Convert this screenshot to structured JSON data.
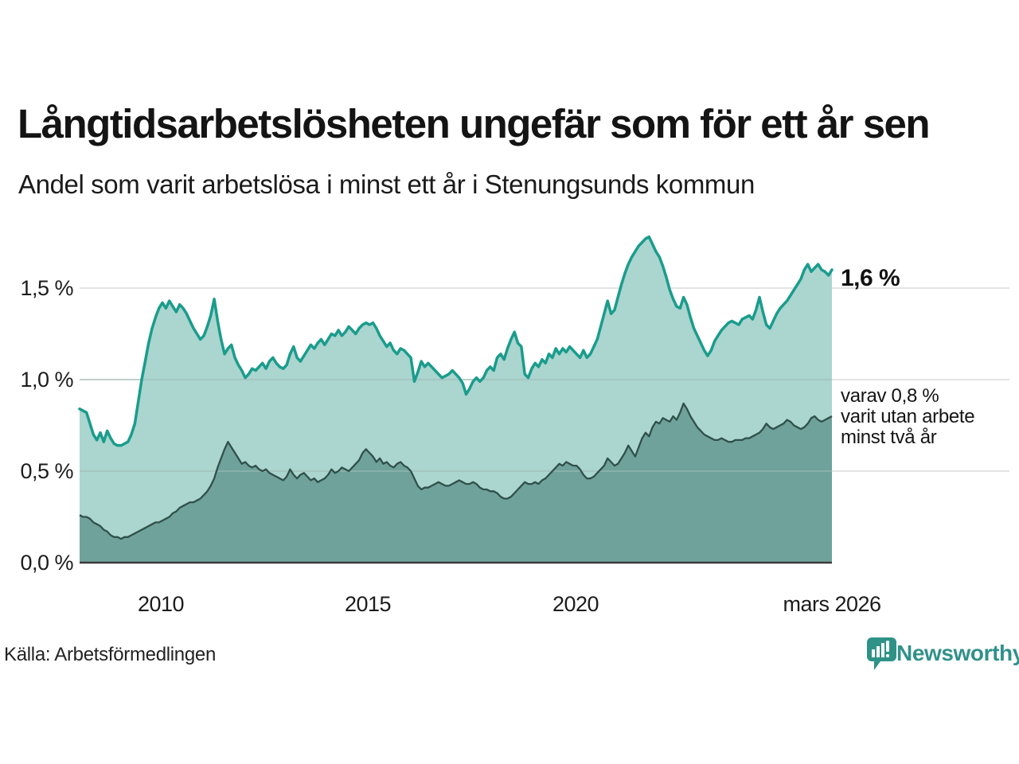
{
  "title": "Långtidsarbetslösheten ungefär som för ett år sen",
  "subtitle": "Andel som varit arbetslösa i minst ett år i Stenungsunds kommun",
  "source": "Källa: Arbetsförmedlingen",
  "brand": {
    "name": "Newsworthy"
  },
  "y_axis": {
    "ticks": [
      "1,5 %",
      "1,0 %",
      "0,5 %",
      "0,0 %"
    ]
  },
  "x_axis": {
    "ticks": [
      "2010",
      "2015",
      "2020",
      "mars 2026"
    ]
  },
  "annotations": {
    "end_value_label": "1,6 %",
    "secondary_line1": "varav 0,8 %",
    "secondary_line2": "varit utan arbete",
    "secondary_line3": "minst två år"
  },
  "colors": {
    "primary_line": "#1A9C8C",
    "primary_fill": "#ABD5CF",
    "secondary_line": "#30504A",
    "secondary_fill": "#6FA29B",
    "gridline": "#E4E4E4",
    "baseline": "#3B3B3B",
    "brand_teal": "#2E9287"
  },
  "chart_data": {
    "type": "area",
    "title": "Långtidsarbetslösheten ungefär som för ett år sen",
    "subtitle": "Andel som varit arbetslösa i minst ett år i Stenungsunds kommun",
    "unit": "%",
    "x_start": "2008-01",
    "x_end": "2026-03",
    "x_step": "month",
    "x_tick_labels": [
      "2010",
      "2015",
      "2020",
      "mars 2026"
    ],
    "ylim": [
      0,
      1.85
    ],
    "y_gridlines": [
      0.0,
      0.5,
      1.0,
      1.5
    ],
    "grid": true,
    "legend_position": "end-of-line annotations",
    "series": [
      {
        "name": "Andel arbetslösa minst ett år",
        "end_label": "1,6 %",
        "end_value": 1.6,
        "line_color": "#1A9C8C",
        "fill_color": "#ABD5CF",
        "values": [
          0.84,
          0.83,
          0.82,
          0.76,
          0.7,
          0.67,
          0.71,
          0.66,
          0.72,
          0.68,
          0.65,
          0.64,
          0.64,
          0.65,
          0.66,
          0.7,
          0.76,
          0.88,
          1.0,
          1.1,
          1.2,
          1.28,
          1.34,
          1.39,
          1.42,
          1.39,
          1.43,
          1.4,
          1.37,
          1.41,
          1.39,
          1.36,
          1.32,
          1.28,
          1.25,
          1.22,
          1.24,
          1.29,
          1.35,
          1.44,
          1.32,
          1.22,
          1.14,
          1.17,
          1.19,
          1.12,
          1.08,
          1.05,
          1.01,
          1.03,
          1.06,
          1.05,
          1.07,
          1.09,
          1.06,
          1.1,
          1.12,
          1.09,
          1.07,
          1.06,
          1.08,
          1.14,
          1.18,
          1.12,
          1.1,
          1.13,
          1.16,
          1.19,
          1.17,
          1.2,
          1.22,
          1.19,
          1.22,
          1.25,
          1.24,
          1.27,
          1.24,
          1.26,
          1.29,
          1.27,
          1.25,
          1.28,
          1.3,
          1.31,
          1.3,
          1.31,
          1.28,
          1.24,
          1.21,
          1.18,
          1.2,
          1.16,
          1.14,
          1.17,
          1.16,
          1.14,
          1.12,
          0.99,
          1.04,
          1.1,
          1.07,
          1.09,
          1.07,
          1.05,
          1.03,
          1.01,
          1.02,
          1.03,
          1.05,
          1.03,
          1.01,
          0.98,
          0.92,
          0.95,
          0.99,
          1.01,
          0.99,
          1.01,
          1.05,
          1.07,
          1.05,
          1.12,
          1.14,
          1.11,
          1.17,
          1.22,
          1.26,
          1.2,
          1.18,
          1.03,
          1.01,
          1.06,
          1.09,
          1.07,
          1.11,
          1.09,
          1.14,
          1.12,
          1.17,
          1.14,
          1.17,
          1.15,
          1.18,
          1.16,
          1.14,
          1.12,
          1.16,
          1.12,
          1.14,
          1.18,
          1.22,
          1.29,
          1.36,
          1.43,
          1.36,
          1.38,
          1.45,
          1.52,
          1.58,
          1.63,
          1.67,
          1.7,
          1.73,
          1.75,
          1.77,
          1.78,
          1.74,
          1.7,
          1.67,
          1.62,
          1.56,
          1.49,
          1.44,
          1.4,
          1.39,
          1.45,
          1.41,
          1.34,
          1.28,
          1.24,
          1.2,
          1.16,
          1.13,
          1.16,
          1.21,
          1.24,
          1.27,
          1.29,
          1.31,
          1.32,
          1.31,
          1.3,
          1.33,
          1.34,
          1.35,
          1.33,
          1.38,
          1.45,
          1.37,
          1.3,
          1.28,
          1.32,
          1.36,
          1.39,
          1.41,
          1.43,
          1.46,
          1.49,
          1.52,
          1.55,
          1.6,
          1.63,
          1.59,
          1.61,
          1.63,
          1.6,
          1.59,
          1.57,
          1.6
        ]
      },
      {
        "name": "varav utan arbete minst två år",
        "end_label": "varav 0,8 % varit utan arbete minst två år",
        "end_value": 0.8,
        "line_color": "#30504A",
        "fill_color": "#6FA29B",
        "values": [
          0.26,
          0.25,
          0.25,
          0.24,
          0.22,
          0.21,
          0.2,
          0.18,
          0.17,
          0.15,
          0.14,
          0.14,
          0.13,
          0.14,
          0.14,
          0.15,
          0.16,
          0.17,
          0.18,
          0.19,
          0.2,
          0.21,
          0.22,
          0.22,
          0.23,
          0.24,
          0.25,
          0.27,
          0.28,
          0.3,
          0.31,
          0.32,
          0.33,
          0.33,
          0.34,
          0.35,
          0.37,
          0.39,
          0.42,
          0.46,
          0.52,
          0.57,
          0.62,
          0.66,
          0.63,
          0.6,
          0.57,
          0.54,
          0.55,
          0.53,
          0.52,
          0.53,
          0.51,
          0.5,
          0.51,
          0.49,
          0.48,
          0.47,
          0.46,
          0.45,
          0.47,
          0.51,
          0.48,
          0.46,
          0.48,
          0.49,
          0.47,
          0.45,
          0.46,
          0.44,
          0.45,
          0.46,
          0.48,
          0.51,
          0.49,
          0.5,
          0.52,
          0.51,
          0.5,
          0.52,
          0.54,
          0.56,
          0.6,
          0.62,
          0.6,
          0.58,
          0.55,
          0.57,
          0.54,
          0.55,
          0.53,
          0.52,
          0.54,
          0.55,
          0.53,
          0.52,
          0.5,
          0.46,
          0.42,
          0.4,
          0.41,
          0.41,
          0.42,
          0.43,
          0.44,
          0.43,
          0.42,
          0.42,
          0.43,
          0.44,
          0.45,
          0.44,
          0.43,
          0.43,
          0.44,
          0.43,
          0.41,
          0.4,
          0.4,
          0.39,
          0.39,
          0.38,
          0.36,
          0.35,
          0.35,
          0.36,
          0.38,
          0.4,
          0.42,
          0.44,
          0.43,
          0.43,
          0.44,
          0.43,
          0.45,
          0.46,
          0.48,
          0.5,
          0.52,
          0.54,
          0.53,
          0.55,
          0.54,
          0.53,
          0.53,
          0.51,
          0.48,
          0.46,
          0.46,
          0.47,
          0.49,
          0.51,
          0.53,
          0.57,
          0.55,
          0.53,
          0.54,
          0.57,
          0.6,
          0.64,
          0.61,
          0.58,
          0.63,
          0.68,
          0.71,
          0.69,
          0.74,
          0.77,
          0.76,
          0.79,
          0.78,
          0.77,
          0.8,
          0.78,
          0.82,
          0.87,
          0.84,
          0.8,
          0.77,
          0.74,
          0.72,
          0.7,
          0.69,
          0.68,
          0.67,
          0.67,
          0.68,
          0.67,
          0.66,
          0.66,
          0.67,
          0.67,
          0.67,
          0.68,
          0.68,
          0.69,
          0.7,
          0.71,
          0.73,
          0.76,
          0.74,
          0.73,
          0.74,
          0.75,
          0.76,
          0.78,
          0.77,
          0.75,
          0.74,
          0.73,
          0.74,
          0.76,
          0.79,
          0.8,
          0.78,
          0.77,
          0.78,
          0.79,
          0.8
        ]
      }
    ]
  }
}
